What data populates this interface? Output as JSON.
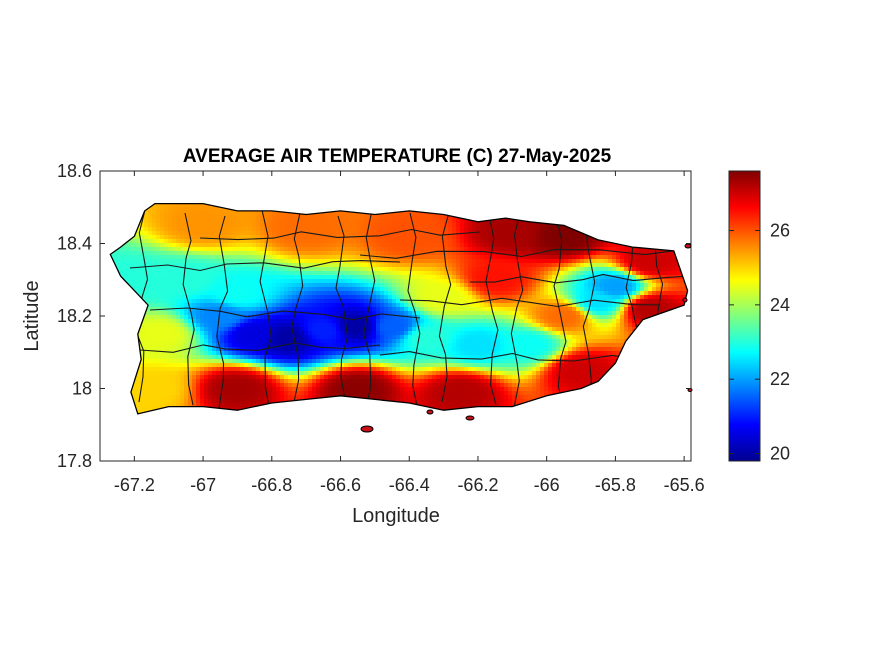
{
  "figure": {
    "title": "AVERAGE AIR TEMPERATURE (C) 27-May-2025",
    "xlabel": "Longitude",
    "ylabel": "Latitude"
  },
  "axes": {
    "xlim": [
      -67.3,
      -65.58
    ],
    "ylim": [
      17.8,
      18.6
    ],
    "xticks": [
      -67.2,
      -67,
      -66.8,
      -66.6,
      -66.4,
      -66.2,
      -66,
      -65.8,
      -65.6
    ],
    "xtick_labels": [
      "-67.2",
      "-67",
      "-66.8",
      "-66.6",
      "-66.4",
      "-66.2",
      "-66",
      "-65.8",
      "-65.6"
    ],
    "yticks": [
      18.6,
      18.4,
      18.2,
      18.0,
      17.8
    ],
    "ytick_labels": [
      "18.6",
      "18.4",
      "18.2",
      "18",
      "17.8"
    ]
  },
  "colorbar": {
    "colormap": "jet",
    "range": [
      19.8,
      27.6
    ],
    "ticks": [
      26,
      24,
      22,
      20
    ],
    "tick_labels": [
      "26",
      "24",
      "22",
      "20"
    ]
  },
  "chart_data": {
    "type": "heatmap",
    "title": "AVERAGE AIR TEMPERATURE (C) 27-May-2025",
    "xlabel": "Longitude",
    "ylabel": "Latitude",
    "xlim": [
      -67.3,
      -65.58
    ],
    "ylim": [
      17.8,
      18.6
    ],
    "value_range": [
      19.8,
      27.6
    ],
    "units": "C",
    "region": "Puerto Rico",
    "coastline": [
      [
        -67.27,
        18.37
      ],
      [
        -67.24,
        18.39
      ],
      [
        -67.2,
        18.42
      ],
      [
        -67.17,
        18.49
      ],
      [
        -67.14,
        18.51
      ],
      [
        -67.0,
        18.51
      ],
      [
        -66.9,
        18.49
      ],
      [
        -66.8,
        18.49
      ],
      [
        -66.7,
        18.48
      ],
      [
        -66.6,
        18.49
      ],
      [
        -66.5,
        18.48
      ],
      [
        -66.4,
        18.49
      ],
      [
        -66.3,
        18.48
      ],
      [
        -66.2,
        18.46
      ],
      [
        -66.12,
        18.47
      ],
      [
        -66.05,
        18.46
      ],
      [
        -65.95,
        18.45
      ],
      [
        -65.85,
        18.41
      ],
      [
        -65.75,
        18.39
      ],
      [
        -65.63,
        18.38
      ],
      [
        -65.59,
        18.27
      ],
      [
        -65.6,
        18.23
      ],
      [
        -65.72,
        18.19
      ],
      [
        -65.77,
        18.13
      ],
      [
        -65.8,
        18.07
      ],
      [
        -65.85,
        18.02
      ],
      [
        -65.9,
        18.0
      ],
      [
        -66.0,
        17.98
      ],
      [
        -66.1,
        17.95
      ],
      [
        -66.2,
        17.95
      ],
      [
        -66.3,
        17.94
      ],
      [
        -66.4,
        17.96
      ],
      [
        -66.5,
        17.97
      ],
      [
        -66.6,
        17.98
      ],
      [
        -66.7,
        17.97
      ],
      [
        -66.8,
        17.96
      ],
      [
        -66.9,
        17.94
      ],
      [
        -67.0,
        17.95
      ],
      [
        -67.1,
        17.95
      ],
      [
        -67.19,
        17.93
      ],
      [
        -67.21,
        17.99
      ],
      [
        -67.18,
        18.08
      ],
      [
        -67.19,
        18.15
      ],
      [
        -67.16,
        18.23
      ],
      [
        -67.24,
        18.31
      ],
      [
        -67.27,
        18.37
      ]
    ],
    "temperature_points": [
      {
        "lon": -67.2,
        "lat": 18.3,
        "t": 23.0
      },
      {
        "lon": -67.05,
        "lat": 18.3,
        "t": 23.0
      },
      {
        "lon": -66.9,
        "lat": 18.26,
        "t": 22.8
      },
      {
        "lon": -67.0,
        "lat": 18.45,
        "t": 25.5
      },
      {
        "lon": -66.95,
        "lat": 18.2,
        "t": 21.8
      },
      {
        "lon": -66.85,
        "lat": 18.15,
        "t": 20.5
      },
      {
        "lon": -66.75,
        "lat": 18.14,
        "t": 20.0
      },
      {
        "lon": -66.65,
        "lat": 18.16,
        "t": 21.0
      },
      {
        "lon": -66.55,
        "lat": 18.17,
        "t": 20.0
      },
      {
        "lon": -66.45,
        "lat": 18.17,
        "t": 21.5
      },
      {
        "lon": -66.35,
        "lat": 18.14,
        "t": 23.0
      },
      {
        "lon": -66.2,
        "lat": 18.12,
        "t": 22.5
      },
      {
        "lon": -66.05,
        "lat": 18.12,
        "t": 22.8
      },
      {
        "lon": -65.85,
        "lat": 18.24,
        "t": 22.5
      },
      {
        "lon": -65.8,
        "lat": 18.28,
        "t": 22.0
      },
      {
        "lon": -66.7,
        "lat": 18.44,
        "t": 25.8
      },
      {
        "lon": -66.4,
        "lat": 18.42,
        "t": 26.0
      },
      {
        "lon": -66.3,
        "lat": 18.25,
        "t": 24.5
      },
      {
        "lon": -66.1,
        "lat": 18.43,
        "t": 27.3
      },
      {
        "lon": -65.95,
        "lat": 18.42,
        "t": 27.6
      },
      {
        "lon": -65.7,
        "lat": 18.35,
        "t": 27.0
      },
      {
        "lon": -65.7,
        "lat": 18.22,
        "t": 27.2
      },
      {
        "lon": -65.9,
        "lat": 18.05,
        "t": 27.0
      },
      {
        "lon": -66.9,
        "lat": 18.0,
        "t": 27.3
      },
      {
        "lon": -66.55,
        "lat": 18.0,
        "t": 27.5
      },
      {
        "lon": -66.25,
        "lat": 17.99,
        "t": 27.2
      },
      {
        "lon": -67.15,
        "lat": 18.0,
        "t": 25.0
      },
      {
        "lon": -67.12,
        "lat": 18.15,
        "t": 24.5
      },
      {
        "lon": -66.15,
        "lat": 18.3,
        "t": 26.5
      },
      {
        "lon": -65.95,
        "lat": 18.2,
        "t": 25.8
      }
    ]
  }
}
